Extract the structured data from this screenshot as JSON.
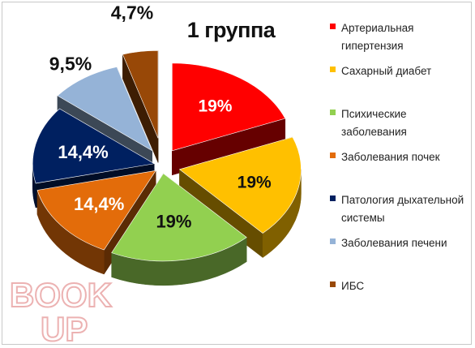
{
  "chart_data": {
    "type": "pie",
    "title": "1 группа",
    "categories": [
      "Артериальная гипертензия",
      "Сахарный диабет",
      "Психические заболевания",
      "Заболевания почек",
      "Патология дыхательной системы",
      "Заболевания печени",
      "ИБС"
    ],
    "values": [
      19,
      19,
      19,
      14.4,
      14.4,
      9.5,
      4.7
    ],
    "data_labels": [
      "19%",
      "19%",
      "19%",
      "14,4%",
      "14,4%",
      "9,5%",
      "4,7%"
    ],
    "colors": [
      "#ff0000",
      "#ffc000",
      "#92d050",
      "#e36c0a",
      "#002060",
      "#95b3d7",
      "#984807"
    ],
    "label_colors": [
      "#ffffff",
      "#111111",
      "#111111",
      "#ffffff",
      "#ffffff",
      "#111111",
      "#111111"
    ],
    "exploded": true,
    "three_d": true,
    "legend_position": "right"
  },
  "watermark": {
    "line1": "BOOK",
    "line2": "UP"
  }
}
